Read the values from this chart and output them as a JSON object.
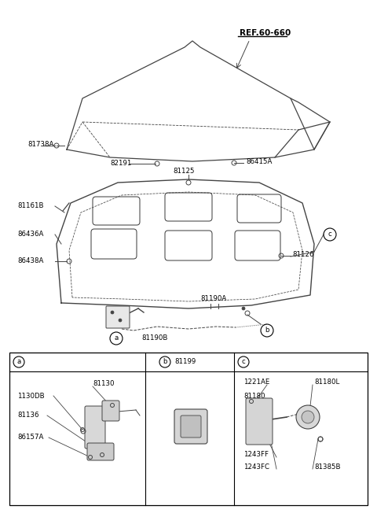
{
  "bg_color": "#ffffff",
  "lc": "#444444",
  "tc": "#000000",
  "labels": {
    "ref": "REF.60-660",
    "p81738A": "81738A",
    "p82191": "82191",
    "p86415A": "86415A",
    "p81125": "81125",
    "p81161B": "81161B",
    "p86436A": "86436A",
    "p86438A": "86438A",
    "p81126": "81126",
    "p81190A": "81190A",
    "p81190B": "81190B",
    "ca": "a",
    "cb": "b",
    "cc": "c",
    "p81130": "81130",
    "p1130DB": "1130DB",
    "p81136": "81136",
    "p86157A": "86157A",
    "p81199": "81199",
    "p1221AE": "1221AE",
    "p81180": "81180",
    "p81180L": "81180L",
    "p1243FF": "1243FF",
    "p1243FC": "1243FC",
    "p81385B": "81385B"
  },
  "fig_w": 4.8,
  "fig_h": 6.57,
  "dpi": 100
}
